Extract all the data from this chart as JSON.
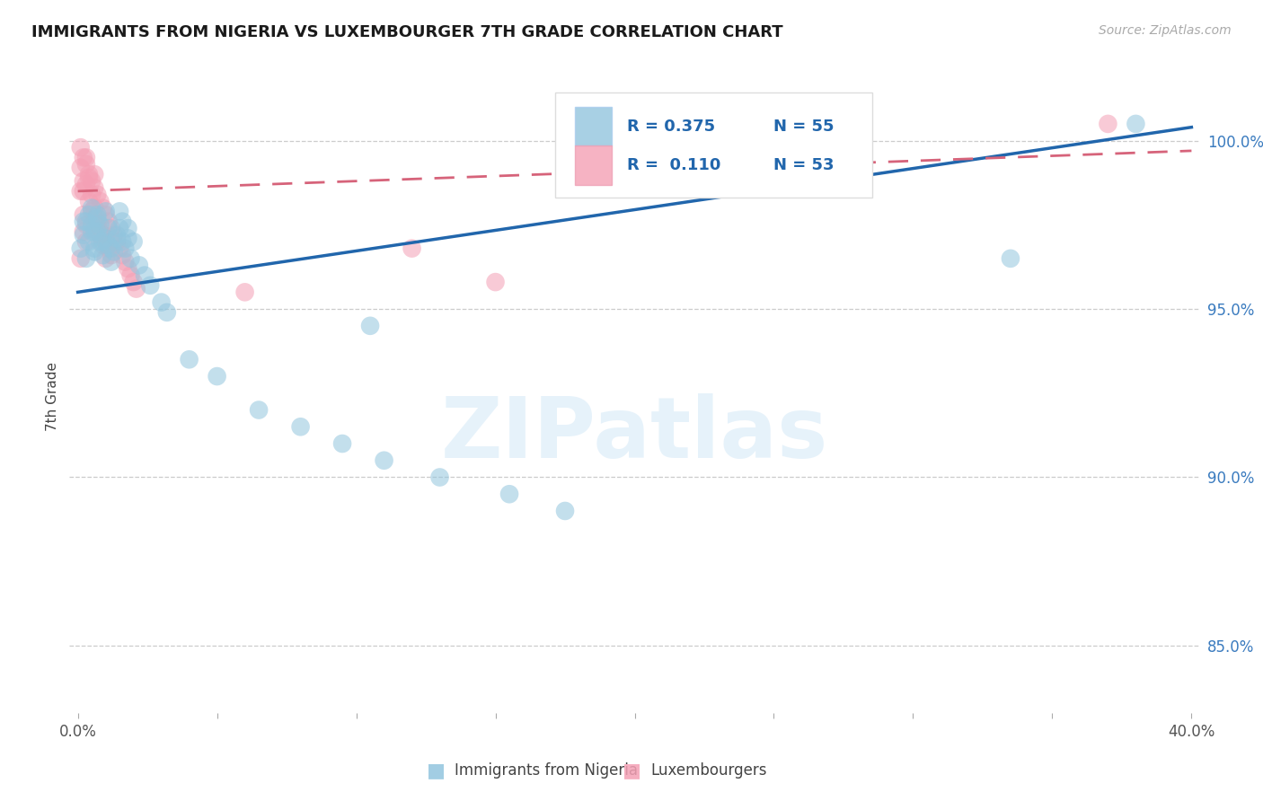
{
  "title": "IMMIGRANTS FROM NIGERIA VS LUXEMBOURGER 7TH GRADE CORRELATION CHART",
  "source": "Source: ZipAtlas.com",
  "ylabel": "7th Grade",
  "y_ticks": [
    85.0,
    90.0,
    95.0,
    100.0
  ],
  "y_tick_labels": [
    "85.0%",
    "90.0%",
    "95.0%",
    "100.0%"
  ],
  "legend_blue_label": "Immigrants from Nigeria",
  "legend_pink_label": "Luxembourgers",
  "legend_r_blue": "R = 0.375",
  "legend_n_blue": "N = 55",
  "legend_r_pink": "R =  0.110",
  "legend_n_pink": "N = 53",
  "blue_color": "#92c5de",
  "pink_color": "#f4a0b5",
  "trendline_blue_color": "#2166ac",
  "trendline_pink_color": "#d6637a",
  "blue_points_x": [
    0.001,
    0.002,
    0.003,
    0.003,
    0.004,
    0.004,
    0.005,
    0.005,
    0.006,
    0.006,
    0.007,
    0.007,
    0.008,
    0.008,
    0.009,
    0.01,
    0.01,
    0.011,
    0.011,
    0.012,
    0.013,
    0.014,
    0.015,
    0.015,
    0.016,
    0.016,
    0.017,
    0.018,
    0.019,
    0.02,
    0.022,
    0.024,
    0.026,
    0.03,
    0.032,
    0.04,
    0.05,
    0.065,
    0.08,
    0.095,
    0.11,
    0.13,
    0.155,
    0.175,
    0.005,
    0.007,
    0.009,
    0.012,
    0.014,
    0.018,
    0.105,
    0.335,
    0.38,
    0.002,
    0.006
  ],
  "blue_points_y": [
    96.8,
    97.2,
    96.5,
    97.6,
    97.0,
    97.8,
    97.5,
    98.0,
    96.8,
    97.3,
    97.3,
    97.8,
    97.0,
    97.5,
    96.6,
    97.1,
    97.9,
    96.9,
    97.4,
    96.4,
    96.7,
    97.2,
    97.4,
    97.9,
    97.0,
    97.6,
    96.8,
    97.1,
    96.5,
    97.0,
    96.3,
    96.0,
    95.7,
    95.2,
    94.9,
    93.5,
    93.0,
    92.0,
    91.5,
    91.0,
    90.5,
    90.0,
    89.5,
    89.0,
    97.3,
    97.7,
    97.0,
    96.8,
    97.1,
    97.4,
    94.5,
    96.5,
    100.5,
    97.6,
    96.7
  ],
  "pink_points_x": [
    0.001,
    0.001,
    0.001,
    0.002,
    0.002,
    0.002,
    0.003,
    0.003,
    0.003,
    0.004,
    0.004,
    0.005,
    0.005,
    0.006,
    0.006,
    0.006,
    0.007,
    0.007,
    0.008,
    0.008,
    0.009,
    0.009,
    0.01,
    0.01,
    0.011,
    0.011,
    0.012,
    0.012,
    0.013,
    0.014,
    0.015,
    0.016,
    0.017,
    0.018,
    0.019,
    0.02,
    0.021,
    0.003,
    0.004,
    0.005,
    0.006,
    0.007,
    0.008,
    0.009,
    0.01,
    0.002,
    0.003,
    0.001,
    0.002,
    0.06,
    0.12,
    0.15,
    0.37
  ],
  "pink_points_y": [
    99.8,
    99.2,
    98.5,
    99.5,
    98.8,
    97.8,
    99.3,
    98.7,
    97.5,
    99.0,
    98.2,
    98.8,
    97.9,
    98.6,
    97.7,
    99.0,
    98.4,
    97.5,
    98.2,
    97.3,
    98.0,
    97.2,
    97.8,
    97.0,
    97.6,
    96.8,
    97.4,
    96.6,
    97.2,
    97.0,
    96.8,
    96.6,
    96.4,
    96.2,
    96.0,
    95.8,
    95.6,
    99.5,
    98.9,
    98.4,
    98.0,
    97.6,
    97.2,
    96.9,
    96.5,
    98.5,
    97.0,
    96.5,
    97.3,
    95.5,
    96.8,
    95.8,
    100.5
  ],
  "xlim": [
    -0.003,
    0.403
  ],
  "ylim": [
    83.0,
    101.8
  ],
  "x_tick_positions": [
    0.0,
    0.05,
    0.1,
    0.15,
    0.2,
    0.25,
    0.3,
    0.35,
    0.4
  ],
  "watermark_text": "ZIPatlas",
  "background_color": "#ffffff",
  "blue_trend_x": [
    0.0,
    0.4
  ],
  "blue_trend_y": [
    95.5,
    100.4
  ],
  "pink_trend_x": [
    0.0,
    0.4
  ],
  "pink_trend_y": [
    98.5,
    99.7
  ]
}
